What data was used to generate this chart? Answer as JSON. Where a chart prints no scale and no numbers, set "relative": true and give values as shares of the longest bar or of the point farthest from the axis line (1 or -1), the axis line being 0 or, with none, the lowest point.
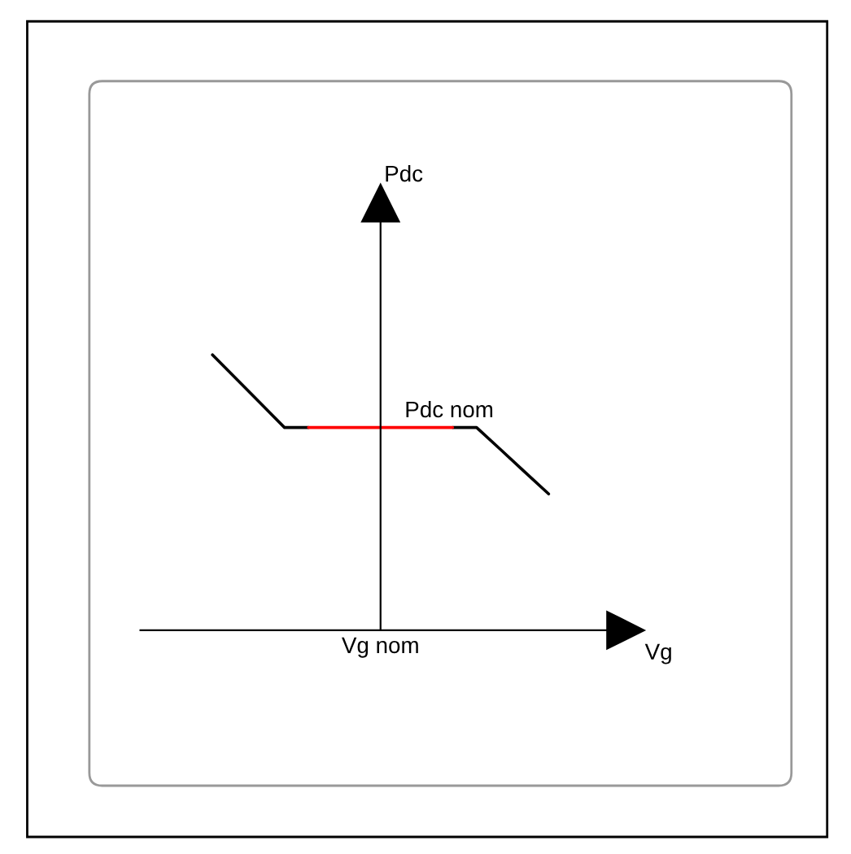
{
  "chart_data": {
    "type": "line",
    "relative": true,
    "categories": [
      null,
      null,
      null,
      null,
      null,
      null,
      null,
      null,
      null,
      null,
      null,
      null,
      null,
      null,
      null
    ],
    "series": [
      {
        "color": "#000000",
        "values": [
          1,
          0.912,
          0.824,
          0.736,
          0.736,
          null,
          null,
          null,
          null,
          null,
          0.736,
          0.736,
          0.656,
          0.575,
          0.495
        ]
      },
      {
        "color": "#ff0000",
        "values": [
          null,
          null,
          null,
          null,
          0.736,
          0.736,
          0.736,
          0.736,
          0.736,
          0.736,
          0.736,
          null,
          null,
          null,
          null
        ]
      }
    ],
    "annotations": [
      "Pdc nom",
      "Vg nom",
      "Pdc",
      "Vg"
    ],
    "legend": false,
    "marker": "none",
    "line_style": "solid"
  }
}
